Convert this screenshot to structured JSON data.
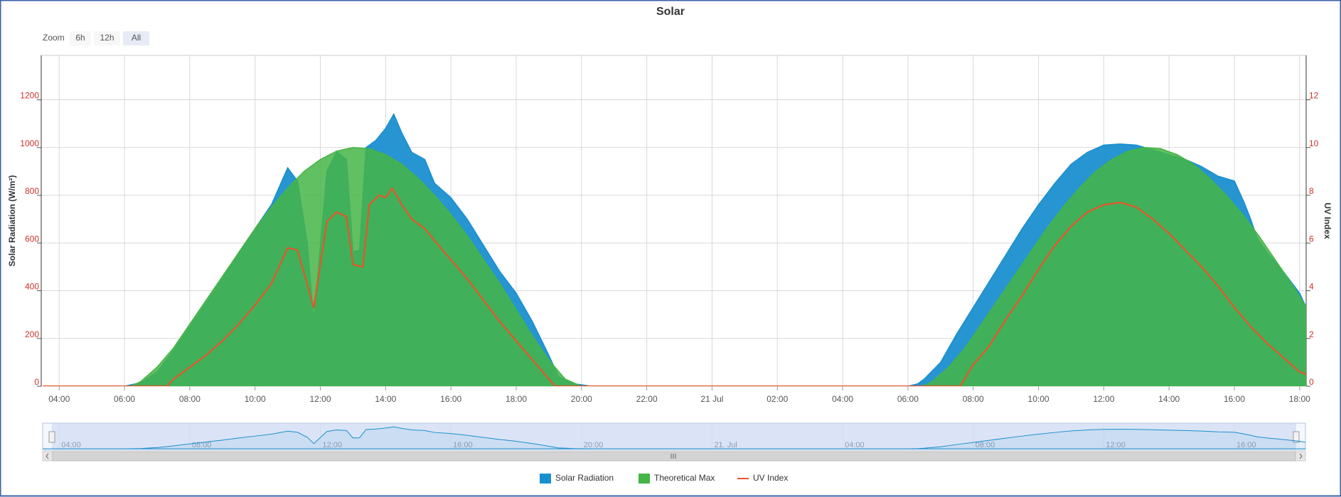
{
  "chart_data": {
    "type": "area",
    "title": "Solar",
    "range_selector": {
      "label": "Zoom",
      "buttons": [
        "6h",
        "12h",
        "All"
      ]
    },
    "xlim": [
      3.45,
      42.2
    ],
    "xticks": [
      {
        "value": 4,
        "label": "04:00"
      },
      {
        "value": 6,
        "label": "06:00"
      },
      {
        "value": 8,
        "label": "08:00"
      },
      {
        "value": 10,
        "label": "10:00"
      },
      {
        "value": 12,
        "label": "12:00"
      },
      {
        "value": 14,
        "label": "14:00"
      },
      {
        "value": 16,
        "label": "16:00"
      },
      {
        "value": 18,
        "label": "18:00"
      },
      {
        "value": 20,
        "label": "20:00"
      },
      {
        "value": 22,
        "label": "22:00"
      },
      {
        "value": 24,
        "label": "21 Jul"
      },
      {
        "value": 26,
        "label": "02:00"
      },
      {
        "value": 28,
        "label": "04:00"
      },
      {
        "value": 30,
        "label": "06:00"
      },
      {
        "value": 32,
        "label": "08:00"
      },
      {
        "value": 34,
        "label": "10:00"
      },
      {
        "value": 36,
        "label": "12:00"
      },
      {
        "value": 38,
        "label": "14:00"
      },
      {
        "value": 40,
        "label": "16:00"
      },
      {
        "value": 42,
        "label": "18:00"
      }
    ],
    "ylabel": "Solar Radiation (W/m²)",
    "ylim": [
      0,
      1386
    ],
    "yticks": [
      0,
      200,
      400,
      600,
      800,
      1000,
      1200
    ],
    "y2label": "UV Index",
    "y2lim": [
      0,
      13.86
    ],
    "y2ticks": [
      0,
      2,
      4,
      6,
      8,
      10,
      12
    ],
    "grid": true,
    "legend": "bottom",
    "series": [
      {
        "name": "Solar Radiation",
        "color": "#1a8fcf",
        "type": "area",
        "x": [
          3.5,
          6,
          6.5,
          7,
          7.5,
          8,
          8.5,
          9,
          9.5,
          10,
          10.5,
          11,
          11.3,
          11.6,
          11.8,
          12.2,
          12.5,
          12.8,
          13,
          13.2,
          13.4,
          13.7,
          14,
          14.25,
          14.5,
          14.8,
          15.2,
          15.5,
          16,
          16.5,
          17,
          17.5,
          18,
          18.5,
          19,
          19.3,
          19.8,
          20.3,
          30,
          30.3,
          30.5,
          31,
          31.5,
          32,
          32.5,
          33,
          33.5,
          34,
          34.5,
          35,
          35.5,
          36,
          36.5,
          37,
          37.5,
          38,
          38.5,
          39,
          39.5,
          40,
          40.3,
          40.5,
          40.7,
          41,
          41.5,
          42,
          42.2
        ],
        "values": [
          0,
          0,
          15,
          60,
          150,
          250,
          350,
          450,
          560,
          660,
          760,
          915,
          860,
          600,
          270,
          900,
          982,
          950,
          563,
          570,
          1000,
          1030,
          1080,
          1140,
          1060,
          980,
          950,
          850,
          790,
          700,
          590,
          480,
          390,
          270,
          130,
          40,
          10,
          0,
          0,
          10,
          30,
          100,
          220,
          330,
          440,
          550,
          660,
          760,
          850,
          930,
          980,
          1010,
          1015,
          1010,
          990,
          970,
          950,
          920,
          880,
          860,
          770,
          700,
          620,
          560,
          480,
          390,
          330
        ]
      },
      {
        "name": "Theoretical Max",
        "color": "#45b545",
        "type": "area",
        "x": [
          3.5,
          6.2,
          6.5,
          7,
          7.5,
          8,
          8.5,
          9,
          9.5,
          10,
          10.5,
          11,
          11.5,
          12,
          12.5,
          13,
          13.5,
          14,
          14.5,
          15,
          15.5,
          16,
          16.5,
          17,
          17.5,
          18,
          18.5,
          19,
          19.5,
          20,
          30.45,
          30.75,
          31.25,
          31.75,
          32.25,
          32.75,
          33.25,
          33.75,
          34.25,
          34.75,
          35.25,
          35.75,
          36.25,
          36.75,
          37.25,
          37.75,
          38.25,
          38.75,
          39.25,
          39.75,
          40.25,
          40.75,
          41.25,
          41.75,
          42.2
        ],
        "values": [
          0,
          0,
          20,
          80,
          160,
          260,
          360,
          460,
          560,
          660,
          750,
          830,
          900,
          950,
          985,
          1000,
          995,
          970,
          930,
          870,
          800,
          720,
          630,
          530,
          430,
          320,
          210,
          110,
          30,
          0,
          0,
          20,
          80,
          160,
          260,
          360,
          460,
          560,
          660,
          750,
          830,
          900,
          950,
          985,
          1000,
          995,
          970,
          930,
          870,
          800,
          720,
          630,
          530,
          430,
          330
        ]
      },
      {
        "name": "UV Index",
        "color": "#e8552a",
        "type": "line",
        "axis": "y2",
        "x": [
          3.5,
          7.3,
          7.5,
          8,
          8.5,
          9,
          9.5,
          10,
          10.5,
          11,
          11.3,
          11.8,
          12.2,
          12.5,
          12.8,
          13,
          13.3,
          13.5,
          13.8,
          14,
          14.2,
          14.5,
          14.8,
          15.2,
          15.5,
          16,
          16.5,
          17,
          17.5,
          18,
          18.5,
          19,
          19.2,
          31.6,
          32,
          32.5,
          33,
          33.5,
          34,
          34.5,
          35,
          35.5,
          36,
          36.5,
          37,
          37.5,
          38,
          38.5,
          39,
          39.5,
          40,
          40.5,
          41,
          41.5,
          42,
          42.2
        ],
        "values": [
          0,
          0,
          0.3,
          0.8,
          1.3,
          1.9,
          2.6,
          3.4,
          4.3,
          5.8,
          5.7,
          3.3,
          6.9,
          7.3,
          7.1,
          5.1,
          5.0,
          7.6,
          8.0,
          7.9,
          8.3,
          7.6,
          7.0,
          6.6,
          6.1,
          5.3,
          4.5,
          3.6,
          2.7,
          1.9,
          1.1,
          0.3,
          0,
          0,
          0.9,
          1.7,
          2.8,
          3.8,
          4.9,
          5.9,
          6.7,
          7.3,
          7.6,
          7.7,
          7.5,
          7.0,
          6.4,
          5.7,
          5.0,
          4.2,
          3.3,
          2.5,
          1.8,
          1.2,
          0.6,
          0.5
        ]
      }
    ],
    "navigator": {
      "xticks": [
        {
          "value": 4,
          "label": "04:00"
        },
        {
          "value": 8,
          "label": "08:00"
        },
        {
          "value": 12,
          "label": "12:00"
        },
        {
          "value": 16,
          "label": "16:00"
        },
        {
          "value": 20,
          "label": "20:00"
        },
        {
          "value": 24,
          "label": "21. Jul"
        },
        {
          "value": 28,
          "label": "04:00"
        },
        {
          "value": 32,
          "label": "08:00"
        },
        {
          "value": 36,
          "label": "12:00"
        },
        {
          "value": 40,
          "label": "16:00"
        }
      ]
    }
  }
}
